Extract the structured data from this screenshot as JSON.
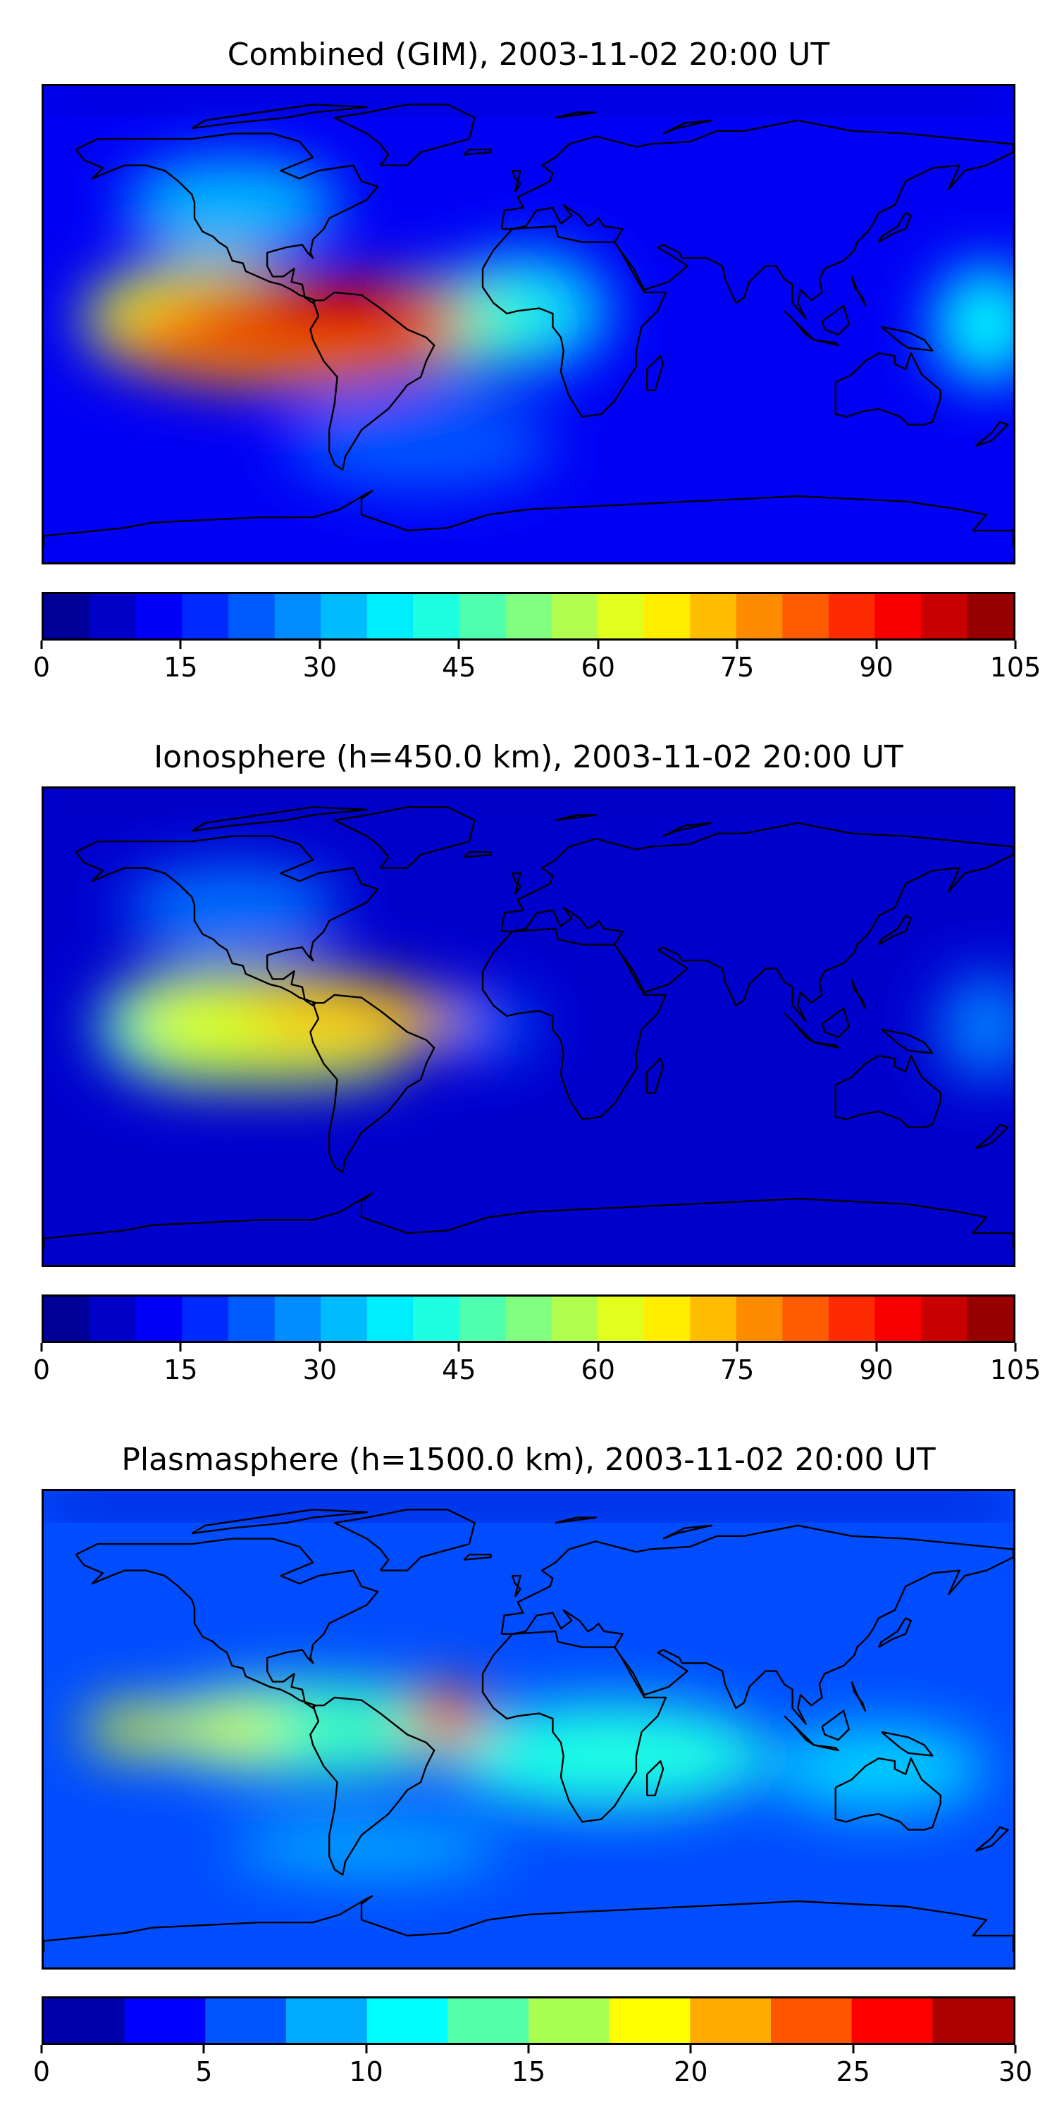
{
  "panels": [
    {
      "title": "Combined (GIM), 2003-11-02 20:00 UT",
      "colorbar": {
        "min": 0,
        "max": 105,
        "step": 5,
        "ticks": [
          "0",
          "15",
          "30",
          "45",
          "60",
          "75",
          "90",
          "105"
        ],
        "tick_values": [
          0,
          15,
          30,
          45,
          60,
          75,
          90,
          105
        ]
      },
      "colormap": "jet",
      "background_level": 12,
      "blobs": [
        {
          "lon": -75,
          "lat": 3,
          "value": 95,
          "rlon": 55,
          "rlat": 14
        },
        {
          "lon": -90,
          "lat": -4,
          "value": 78,
          "rlon": 65,
          "rlat": 20
        },
        {
          "lon": -120,
          "lat": 2,
          "value": 60,
          "rlon": 45,
          "rlat": 22
        },
        {
          "lon": -30,
          "lat": 0,
          "value": 45,
          "rlon": 35,
          "rlat": 18
        },
        {
          "lon": 0,
          "lat": 5,
          "value": 35,
          "rlon": 30,
          "rlat": 22
        },
        {
          "lon": 170,
          "lat": 0,
          "value": 38,
          "rlon": 20,
          "rlat": 22
        },
        {
          "lon": -110,
          "lat": 45,
          "value": 32,
          "rlon": 40,
          "rlat": 18
        },
        {
          "lon": -40,
          "lat": -45,
          "value": 22,
          "rlon": 50,
          "rlat": 18
        }
      ]
    },
    {
      "title": "Ionosphere  (h=450.0 km), 2003-11-02 20:00 UT",
      "colorbar": {
        "min": 0,
        "max": 105,
        "step": 5,
        "ticks": [
          "0",
          "15",
          "30",
          "45",
          "60",
          "75",
          "90",
          "105"
        ],
        "tick_values": [
          0,
          15,
          30,
          45,
          60,
          75,
          90,
          105
        ]
      },
      "colormap": "jet",
      "background_level": 8,
      "blobs": [
        {
          "lon": -65,
          "lat": 3,
          "value": 72,
          "rlon": 40,
          "rlat": 12
        },
        {
          "lon": -95,
          "lat": 5,
          "value": 62,
          "rlon": 55,
          "rlat": 16
        },
        {
          "lon": -95,
          "lat": -12,
          "value": 58,
          "rlon": 50,
          "rlat": 10
        },
        {
          "lon": -120,
          "lat": 0,
          "value": 45,
          "rlon": 40,
          "rlat": 22
        },
        {
          "lon": -15,
          "lat": 0,
          "value": 22,
          "rlon": 18,
          "rlat": 12
        },
        {
          "lon": 170,
          "lat": 0,
          "value": 26,
          "rlon": 18,
          "rlat": 20
        },
        {
          "lon": -110,
          "lat": 45,
          "value": 25,
          "rlon": 40,
          "rlat": 16
        }
      ]
    },
    {
      "title": "Plasmasphere (h=1500.0 km), 2003-11-02 20:00 UT",
      "colorbar": {
        "min": 0,
        "max": 30,
        "step": 2.5,
        "ticks": [
          "0",
          "5",
          "10",
          "15",
          "20",
          "25",
          "30"
        ],
        "tick_values": [
          0,
          5,
          10,
          15,
          20,
          25,
          30
        ]
      },
      "colormap": "jet",
      "background_level": 6,
      "blobs": [
        {
          "lon": -30,
          "lat": 5,
          "value": 24,
          "rlon": 14,
          "rlat": 12
        },
        {
          "lon": -145,
          "lat": 0,
          "value": 18,
          "rlon": 20,
          "rlat": 9
        },
        {
          "lon": -110,
          "lat": 0,
          "value": 18,
          "rlon": 20,
          "rlat": 9
        },
        {
          "lon": -80,
          "lat": 0,
          "value": 13,
          "rlon": 60,
          "rlat": 18
        },
        {
          "lon": 30,
          "lat": -10,
          "value": 12,
          "rlon": 60,
          "rlat": 20
        },
        {
          "lon": 130,
          "lat": -15,
          "value": 10,
          "rlon": 40,
          "rlat": 16
        },
        {
          "lon": -60,
          "lat": -45,
          "value": 9,
          "rlon": 50,
          "rlat": 10
        }
      ]
    }
  ]
}
